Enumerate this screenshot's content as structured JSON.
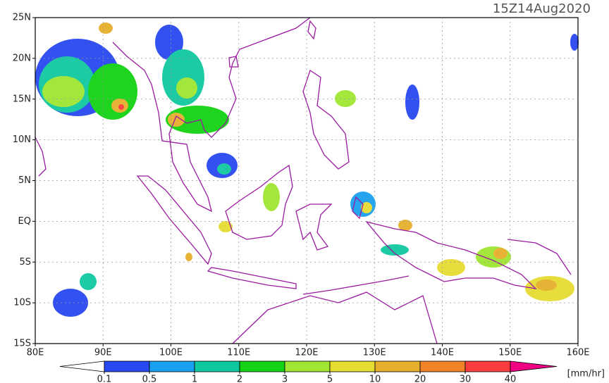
{
  "map": {
    "title": "15Z14Aug2020",
    "xlim": [
      80,
      160
    ],
    "ylim": [
      -15,
      25
    ],
    "xticks": [
      {
        "value": 80,
        "label": "80E"
      },
      {
        "value": 90,
        "label": "90E"
      },
      {
        "value": 100,
        "label": "100E"
      },
      {
        "value": 110,
        "label": "110E"
      },
      {
        "value": 120,
        "label": "120E"
      },
      {
        "value": 130,
        "label": "130E"
      },
      {
        "value": 140,
        "label": "140E"
      },
      {
        "value": 150,
        "label": "150E"
      },
      {
        "value": 160,
        "label": "160E"
      }
    ],
    "yticks": [
      {
        "value": 25,
        "label": "25N"
      },
      {
        "value": 20,
        "label": "20N"
      },
      {
        "value": 15,
        "label": "15N"
      },
      {
        "value": 10,
        "label": "10N"
      },
      {
        "value": 5,
        "label": "5N"
      },
      {
        "value": 0,
        "label": "EQ"
      },
      {
        "value": -5,
        "label": "5S"
      },
      {
        "value": -10,
        "label": "10S"
      },
      {
        "value": -15,
        "label": "15S"
      }
    ],
    "grid": true,
    "colorbar": {
      "levels": [
        0.1,
        0.5,
        1,
        2,
        3,
        5,
        10,
        20,
        30,
        40
      ],
      "colors": [
        "#ffffff",
        "#2848f0",
        "#1aa0f0",
        "#10c8a0",
        "#14d214",
        "#a0e632",
        "#e6dc32",
        "#e6af2d",
        "#f08228",
        "#fa3c3c",
        "#f00082"
      ],
      "unit": "[mm/hr]"
    }
  }
}
